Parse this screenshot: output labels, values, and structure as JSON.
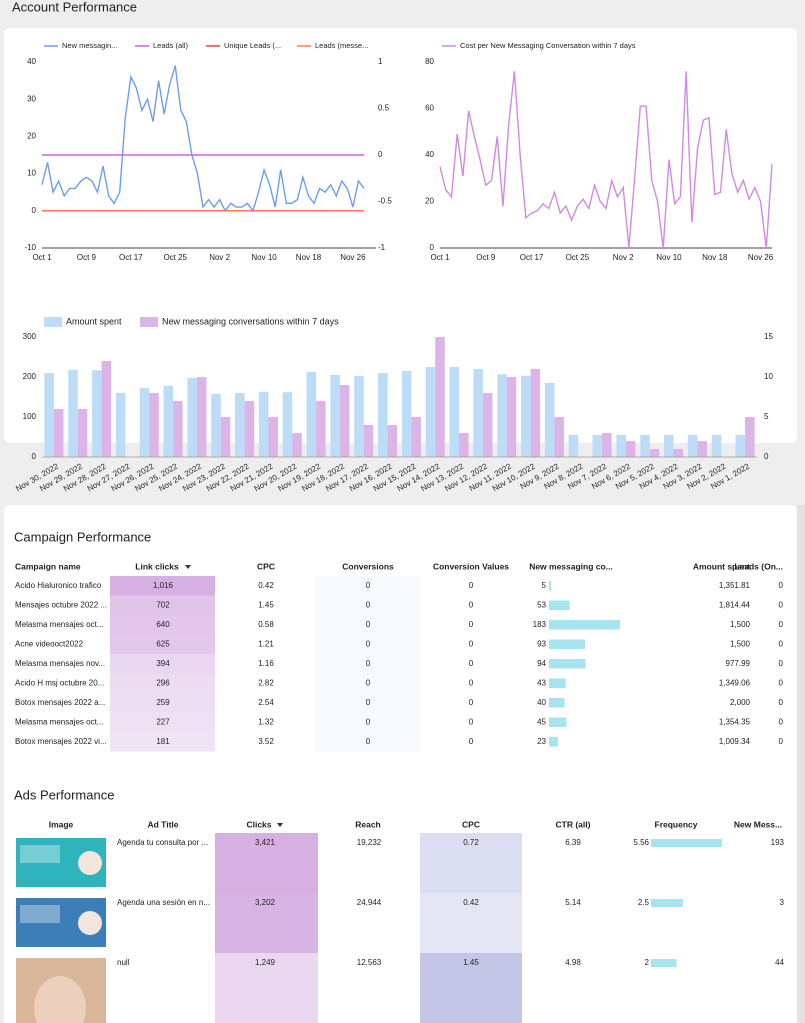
{
  "sections": {
    "account": "Account Performance",
    "campaign": "Campaign Performance",
    "ads": "Ads Performance"
  },
  "chart_data": [
    {
      "type": "line",
      "categories": [
        "Oct 1",
        null,
        null,
        null,
        null,
        null,
        null,
        null,
        "Oct 9",
        null,
        null,
        null,
        null,
        null,
        null,
        null,
        "Oct 17",
        null,
        null,
        null,
        null,
        null,
        null,
        null,
        "Oct 25",
        null,
        null,
        null,
        null,
        null,
        null,
        null,
        "Nov 2",
        null,
        null,
        null,
        null,
        null,
        null,
        null,
        "Nov 10",
        null,
        null,
        null,
        null,
        null,
        null,
        null,
        "Nov 18",
        null,
        null,
        null,
        null,
        null,
        null,
        null,
        "Nov 26",
        null,
        null
      ],
      "ylim": [
        -10,
        40
      ],
      "yticks": [
        -10,
        0,
        10,
        20,
        30,
        40
      ],
      "y2lim": [
        -1,
        1
      ],
      "y2ticks": [
        -1,
        -0.5,
        0,
        0.5,
        1
      ],
      "series": [
        {
          "name": "New messagin...",
          "color": "#6d9eeb",
          "values": [
            7,
            13,
            5,
            8,
            4,
            6,
            6,
            8,
            9,
            8,
            5,
            12,
            4,
            2,
            5,
            25,
            36,
            33,
            27,
            30,
            24,
            35,
            26,
            34,
            39,
            27,
            24,
            15,
            10,
            1,
            3,
            1,
            3,
            0,
            2,
            1,
            1,
            2,
            0,
            5,
            11,
            7,
            1,
            11,
            2,
            2,
            3,
            9,
            4,
            2,
            6,
            5,
            7,
            4,
            8,
            6,
            1,
            8,
            6
          ]
        },
        {
          "name": "Leads (all)",
          "color": "#cc66dd",
          "axis": "y2",
          "values": [
            0,
            0,
            0,
            0,
            0,
            0,
            0,
            0,
            0,
            0,
            0,
            0,
            0,
            0,
            0,
            0,
            0,
            0,
            0,
            0,
            0,
            0,
            0,
            0,
            0,
            0,
            0,
            0,
            0,
            0,
            0,
            0,
            0,
            0,
            0,
            0,
            0,
            0,
            0,
            0,
            0,
            0,
            0,
            0,
            0,
            0,
            0,
            0,
            0,
            0,
            0,
            0,
            0,
            0,
            0,
            0,
            0,
            0,
            0
          ]
        },
        {
          "name": "Unique Leads (...",
          "color": "#ea4335",
          "values": [
            0,
            0,
            0,
            0,
            0,
            0,
            0,
            0,
            0,
            0,
            0,
            0,
            0,
            0,
            0,
            0,
            0,
            0,
            0,
            0,
            0,
            0,
            0,
            0,
            0,
            0,
            0,
            0,
            0,
            0,
            0,
            0,
            0,
            0,
            0,
            0,
            0,
            0,
            0,
            0,
            0,
            0,
            0,
            0,
            0,
            0,
            0,
            0,
            0,
            0,
            0,
            0,
            0,
            0,
            0,
            0,
            0,
            0,
            0
          ]
        },
        {
          "name": "Leads (messe...",
          "color": "#ff7a59",
          "values": [
            0,
            0,
            0,
            0,
            0,
            0,
            0,
            0,
            0,
            0,
            0,
            0,
            0,
            0,
            0,
            0,
            0,
            0,
            0,
            0,
            0,
            0,
            0,
            0,
            0,
            0,
            0,
            0,
            0,
            0,
            0,
            0,
            0,
            0,
            0,
            0,
            0,
            0,
            0,
            0,
            0,
            0,
            0,
            0,
            0,
            0,
            0,
            0,
            0,
            0,
            0,
            0,
            0,
            0,
            0,
            0,
            0,
            0,
            0
          ]
        }
      ]
    },
    {
      "type": "line",
      "categories": [
        "Oct 1",
        null,
        null,
        null,
        null,
        null,
        null,
        null,
        "Oct 9",
        null,
        null,
        null,
        null,
        null,
        null,
        null,
        "Oct 17",
        null,
        null,
        null,
        null,
        null,
        null,
        null,
        "Oct 25",
        null,
        null,
        null,
        null,
        null,
        null,
        null,
        "Nov 2",
        null,
        null,
        null,
        null,
        null,
        null,
        null,
        "Nov 10",
        null,
        null,
        null,
        null,
        null,
        null,
        null,
        "Nov 18",
        null,
        null,
        null,
        null,
        null,
        null,
        null,
        "Nov 26",
        null,
        null
      ],
      "ylim": [
        0,
        80
      ],
      "yticks": [
        0,
        20,
        40,
        60,
        80
      ],
      "series": [
        {
          "name": "Cost per New Messaging Conversation within 7 days",
          "color": "#d08be0",
          "values": [
            35,
            25,
            22,
            49,
            31,
            59,
            48,
            38,
            27,
            29,
            48,
            18,
            53,
            76,
            40,
            13,
            15,
            16,
            19,
            17,
            24,
            15,
            18,
            12,
            18,
            21,
            17,
            27,
            20,
            17,
            29,
            22,
            26,
            0,
            30,
            61,
            61,
            29,
            20,
            0,
            38,
            19,
            22,
            76,
            11,
            43,
            55,
            56,
            23,
            24,
            51,
            32,
            24,
            29,
            21,
            26,
            20,
            0,
            36
          ]
        }
      ]
    },
    {
      "type": "bar",
      "categories": [
        "Nov 30, 2022",
        "Nov 29, 2022",
        "Nov 28, 2022",
        "Nov 27, 2022",
        "Nov 26, 2022",
        "Nov 25, 2022",
        "Nov 24, 2022",
        "Nov 23, 2022",
        "Nov 22, 2022",
        "Nov 21, 2022",
        "Nov 20, 2022",
        "Nov 19, 2022",
        "Nov 18, 2022",
        "Nov 17, 2022",
        "Nov 16, 2022",
        "Nov 15, 2022",
        "Nov 14, 2022",
        "Nov 13, 2022",
        "Nov 12, 2022",
        "Nov 11, 2022",
        "Nov 10, 2022",
        "Nov 9, 2022",
        "Nov 8, 2022",
        "Nov 7, 2022",
        "Nov 6, 2022",
        "Nov 5, 2022",
        "Nov 4, 2022",
        "Nov 3, 2022",
        "Nov 2, 2022",
        "Nov 1, 2022"
      ],
      "ylim": [
        0,
        300
      ],
      "yticks": [
        0,
        100,
        200,
        300
      ],
      "y2lim": [
        0,
        15
      ],
      "y2ticks": [
        0,
        5,
        10,
        15
      ],
      "series": [
        {
          "name": "Amount spent",
          "color": "#bcdcf7",
          "values": [
            210,
            218,
            217,
            160,
            172,
            178,
            198,
            158,
            160,
            163,
            162,
            213,
            205,
            203,
            210,
            215,
            225,
            225,
            220,
            207,
            203,
            185,
            55,
            55,
            55,
            55,
            55,
            55,
            55,
            55
          ]
        },
        {
          "name": "New messaging conversations within 7 days",
          "color": "#dcb4e8",
          "axis": "y2",
          "values": [
            6,
            6,
            12,
            0,
            8,
            7,
            10,
            5,
            7,
            5,
            3,
            7,
            9,
            4,
            4,
            5,
            15,
            3,
            8,
            10,
            11,
            5,
            0,
            3,
            2,
            1,
            1,
            2,
            0,
            5
          ]
        }
      ]
    }
  ],
  "campaign_table": {
    "columns": [
      "Campaign name",
      "Link clicks",
      "CPC",
      "Conversions",
      "Conversion Values",
      "New messaging co...",
      "Amount spent",
      "Leads (On..."
    ],
    "rows": [
      [
        "Acido Hialuronico trafico",
        "1,016",
        0.42,
        0,
        0,
        5,
        "1,351.81",
        0
      ],
      [
        "Mensajes octubre 2022 ...",
        "702",
        1.45,
        0,
        0,
        53,
        "1,814.44",
        0
      ],
      [
        "Melasma mensajes oct...",
        "640",
        0.58,
        0,
        0,
        183,
        "1,500",
        0
      ],
      [
        "Acne videooct2022",
        "625",
        1.21,
        0,
        0,
        93,
        "1,500",
        0
      ],
      [
        "Melasma mensajes nov...",
        "394",
        1.16,
        0,
        0,
        94,
        "977.99",
        0
      ],
      [
        "Acido H msj octubre 20...",
        "296",
        2.82,
        0,
        0,
        43,
        "1,349.06",
        0
      ],
      [
        "Botox mensajes 2022 a...",
        "259",
        2.54,
        0,
        0,
        40,
        "2,000",
        0
      ],
      [
        "Melasma mensajes oct...",
        "227",
        1.32,
        0,
        0,
        45,
        "1,354.35",
        0
      ],
      [
        "Botox mensajes 2022 vi...",
        "181",
        3.52,
        0,
        0,
        23,
        "1,009.34",
        0
      ]
    ]
  },
  "ads_table": {
    "columns": [
      "Image",
      "Ad Title",
      "Clicks",
      "Reach",
      "CPC",
      "CTR (all)",
      "Frequency",
      "New Mess..."
    ],
    "rows": [
      [
        "Agenda tu consulta por ...",
        "3,421",
        "19,232",
        0.72,
        6.39,
        5.56,
        193
      ],
      [
        "Agenda una sesión en n...",
        "3,202",
        "24,944",
        0.42,
        5.14,
        2.5,
        3
      ],
      [
        "null",
        "1,249",
        "12,563",
        1.45,
        4.98,
        2,
        44
      ]
    ]
  }
}
